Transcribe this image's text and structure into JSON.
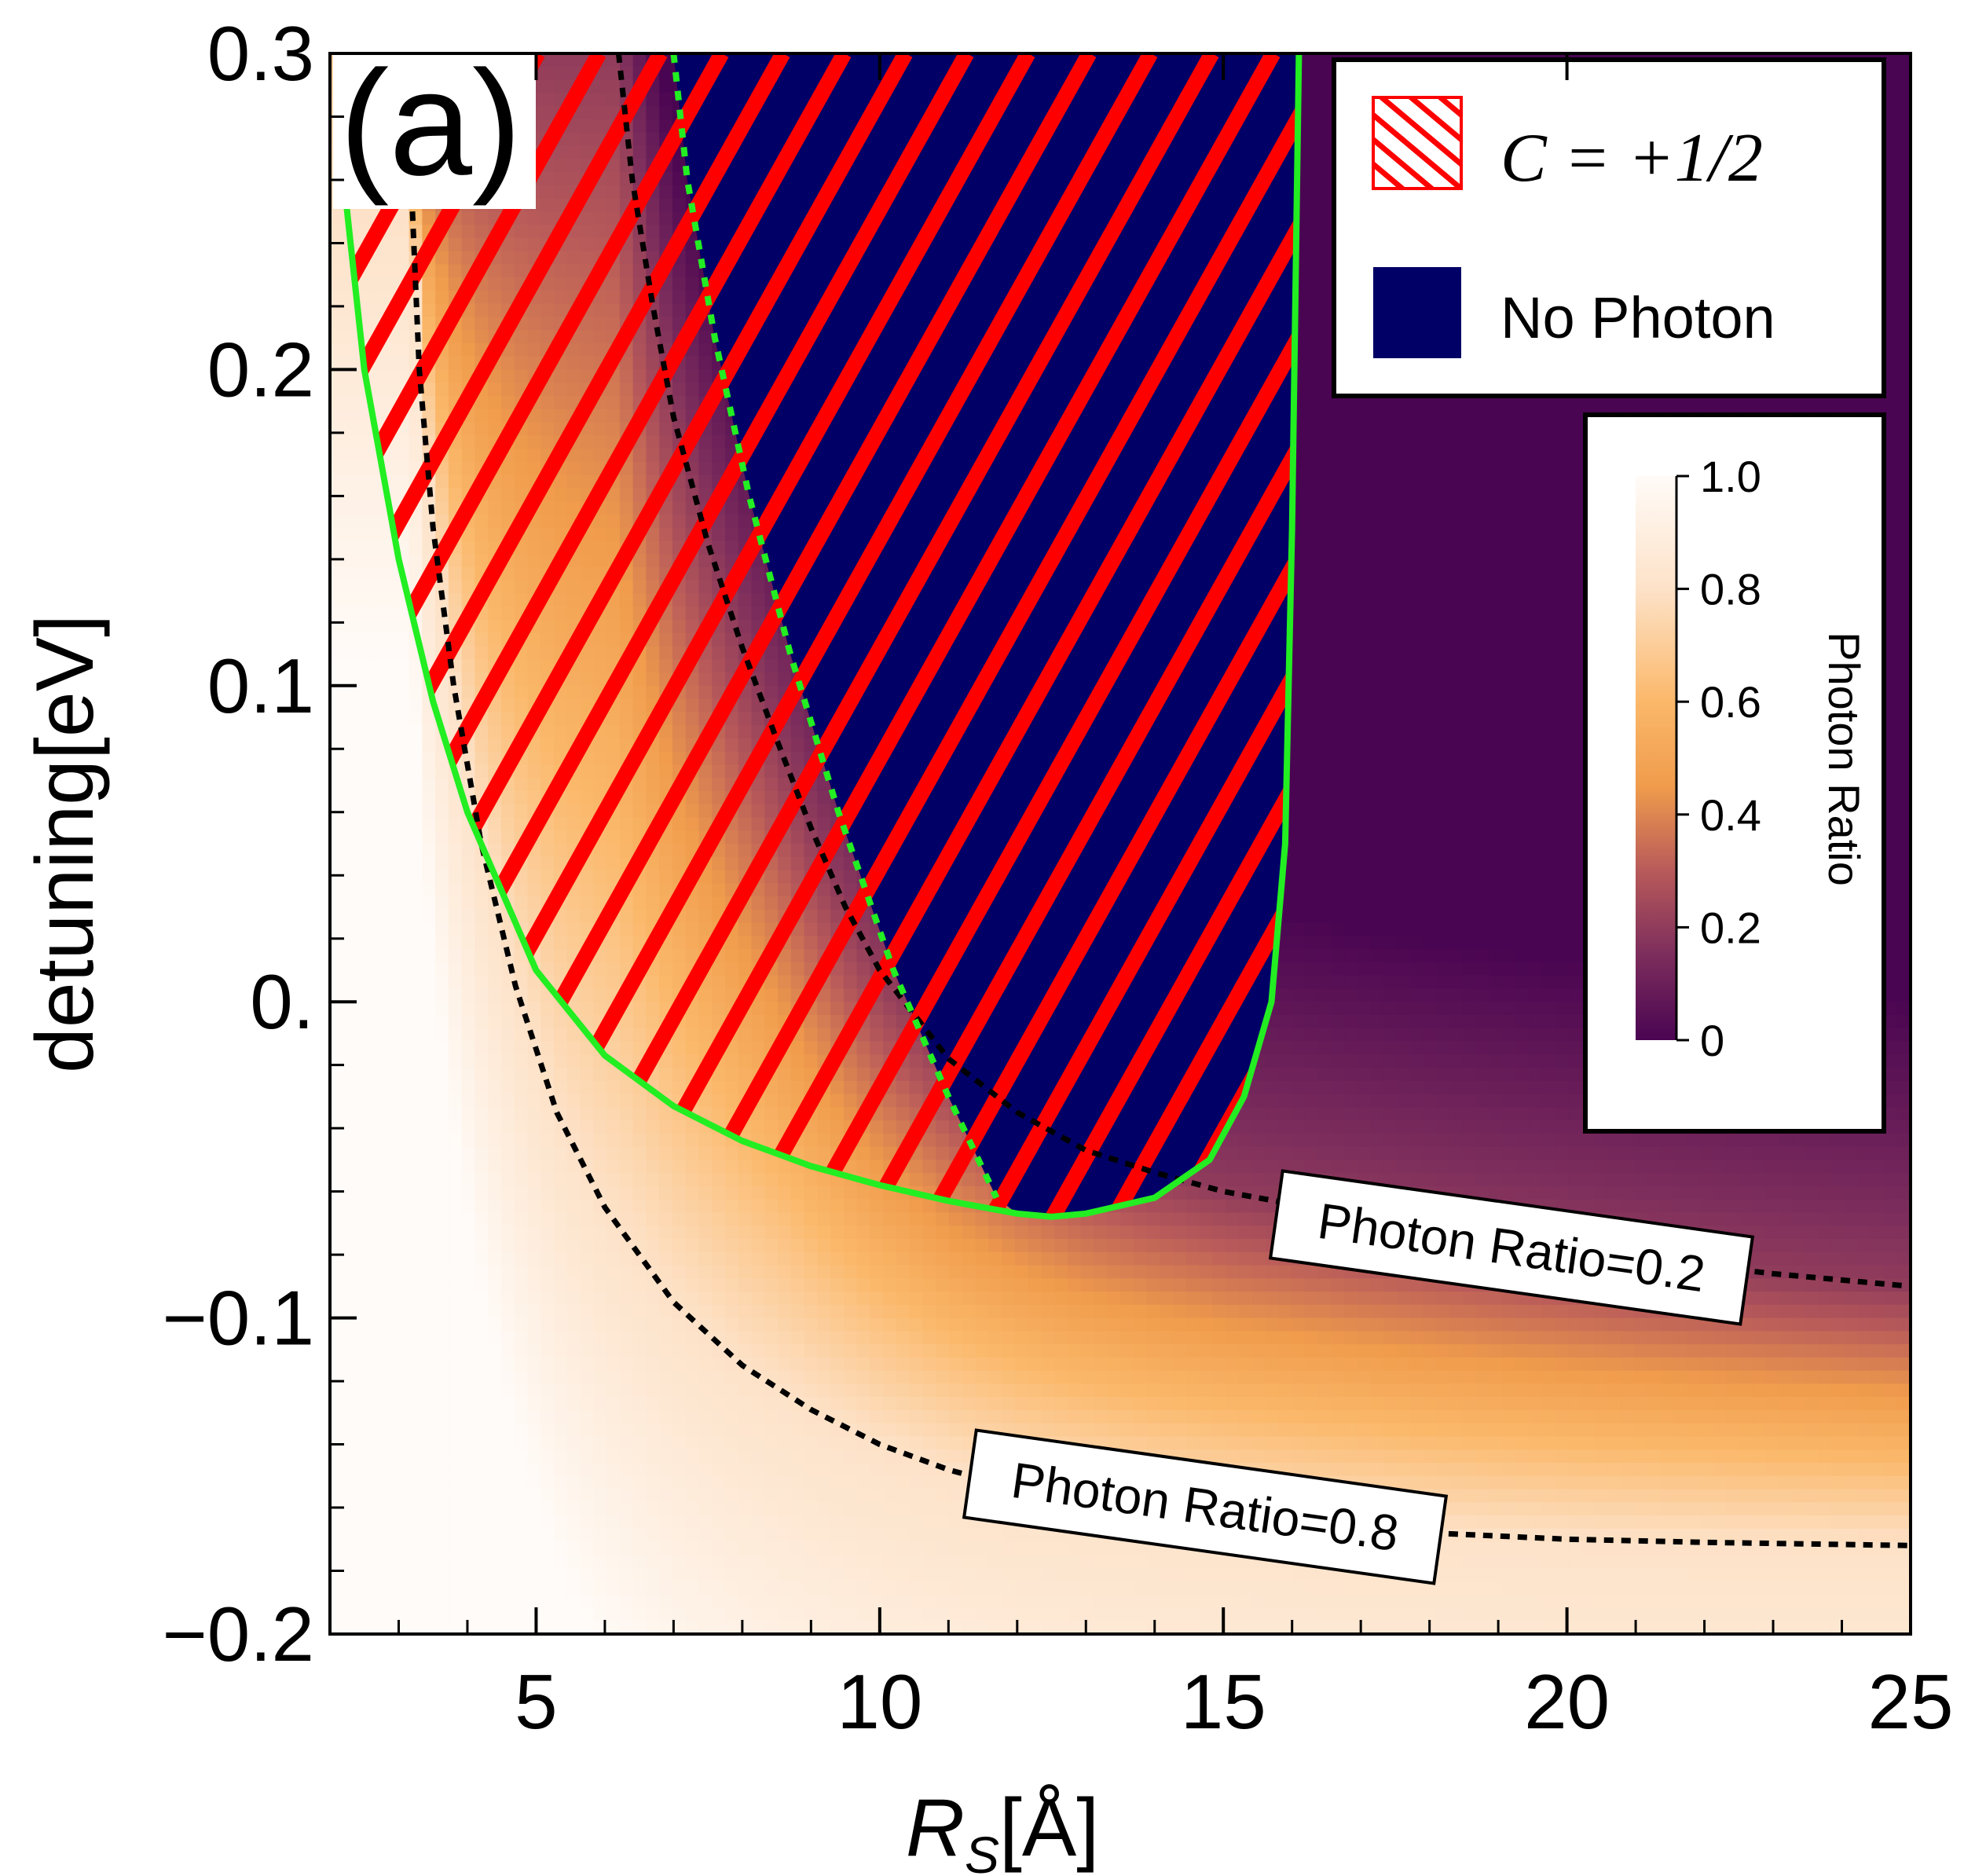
{
  "chart_data": {
    "type": "heatmap",
    "panel_label": "(a)",
    "xlabel_main": "R",
    "xlabel_sub": "S",
    "xlabel_unit": "[Å]",
    "ylabel": "detuning[eV]",
    "xlim": [
      2.0,
      25.0
    ],
    "ylim": [
      -0.2,
      0.3
    ],
    "x_ticks": [
      5,
      10,
      15,
      20,
      25
    ],
    "x_tick_labels": [
      "5",
      "10",
      "15",
      "20",
      "25"
    ],
    "y_ticks": [
      -0.2,
      -0.1,
      0.0,
      0.1,
      0.2,
      0.3
    ],
    "y_tick_labels": [
      "−0.2",
      "−0.1",
      "0.",
      "0.1",
      "0.2",
      "0.3"
    ],
    "colorbar": {
      "title": "Photon Ratio",
      "range": [
        0,
        1
      ],
      "ticks": [
        0,
        0.2,
        0.4,
        0.6,
        0.8,
        1.0
      ],
      "tick_labels": [
        "0",
        "0.2",
        "0.4",
        "0.6",
        "0.8",
        "1.0"
      ],
      "colormap": [
        {
          "value": 0.0,
          "color": "#4a0552"
        },
        {
          "value": 0.15,
          "color": "#7c2d5c"
        },
        {
          "value": 0.3,
          "color": "#b85a5a"
        },
        {
          "value": 0.45,
          "color": "#f09c4c"
        },
        {
          "value": 0.6,
          "color": "#fbb86a"
        },
        {
          "value": 0.8,
          "color": "#fde2c8"
        },
        {
          "value": 1.0,
          "color": "#fffbf8"
        }
      ]
    },
    "legend": [
      {
        "label": "C = +1/2",
        "style": "hatched",
        "color": "#ff0000"
      },
      {
        "label": "No Photon",
        "style": "fill",
        "color": "#000066"
      }
    ],
    "contours": [
      {
        "label": "Photon Ratio=0.2",
        "style": "dotted",
        "x": [
          6.2,
          6.4,
          6.7,
          7.0,
          7.5,
          8.0,
          8.5,
          9.0,
          9.5,
          10.0,
          11.0,
          12.0,
          13.0,
          14.0,
          15.0,
          17.0,
          19.0,
          21.0,
          23.0,
          25.0
        ],
        "y": [
          0.3,
          0.26,
          0.22,
          0.185,
          0.145,
          0.112,
          0.083,
          0.055,
          0.03,
          0.01,
          -0.018,
          -0.035,
          -0.047,
          -0.054,
          -0.06,
          -0.068,
          -0.075,
          -0.081,
          -0.086,
          -0.09
        ]
      },
      {
        "label": "Photon Ratio=0.8",
        "style": "dotted",
        "x": [
          3.2,
          3.3,
          3.5,
          3.8,
          4.2,
          4.7,
          5.3,
          6.0,
          7.0,
          8.0,
          9.0,
          10.0,
          11.0,
          12.0,
          14.0,
          16.0,
          18.0,
          20.0,
          22.0,
          25.0
        ],
        "y": [
          0.25,
          0.2,
          0.15,
          0.1,
          0.05,
          0.005,
          -0.035,
          -0.065,
          -0.095,
          -0.115,
          -0.129,
          -0.14,
          -0.148,
          -0.154,
          -0.161,
          -0.165,
          -0.168,
          -0.17,
          -0.171,
          -0.172
        ]
      }
    ],
    "regions": {
      "hatched_region_label": "C = +1/2",
      "hatched_boundary": {
        "x": [
          2.1,
          2.2,
          2.5,
          3.0,
          3.5,
          4.0,
          5.0,
          6.0,
          7.0,
          8.0,
          9.0,
          10.0,
          11.0,
          12.0,
          12.5,
          13.0,
          14.0,
          14.8,
          15.3,
          15.7,
          15.9,
          16.0,
          16.1
        ],
        "y": [
          0.3,
          0.26,
          0.2,
          0.14,
          0.095,
          0.06,
          0.01,
          -0.017,
          -0.033,
          -0.044,
          -0.052,
          -0.058,
          -0.063,
          -0.067,
          -0.068,
          -0.067,
          -0.062,
          -0.05,
          -0.03,
          0.0,
          0.05,
          0.15,
          0.3
        ]
      },
      "no_photon_region_label": "No Photon",
      "no_photon_left_boundary": {
        "x": [
          7.0,
          7.2,
          7.6,
          8.1,
          8.7,
          9.4,
          10.2,
          11.0,
          11.7
        ],
        "y": [
          0.3,
          0.26,
          0.21,
          0.16,
          0.11,
          0.06,
          0.01,
          -0.03,
          -0.062
        ]
      }
    }
  }
}
